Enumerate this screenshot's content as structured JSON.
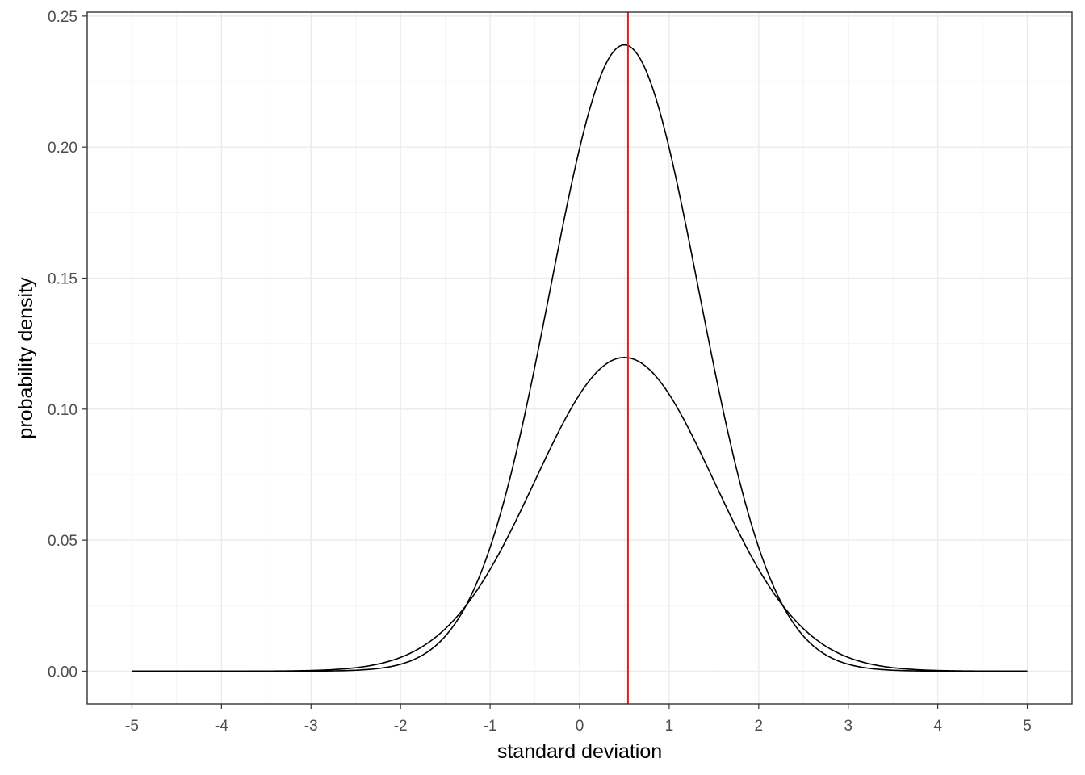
{
  "chart_data": {
    "type": "line",
    "title": "",
    "xlabel": "standard deviation",
    "ylabel": "probability density",
    "xlim": [
      -5.5,
      5.5
    ],
    "ylim": [
      -0.0125,
      0.2515
    ],
    "x_ticks": [
      -5,
      -4,
      -3,
      -2,
      -1,
      0,
      1,
      2,
      3,
      4,
      5
    ],
    "y_ticks": [
      0.0,
      0.05,
      0.1,
      0.15,
      0.2,
      0.25
    ],
    "x_tick_labels": [
      "-5",
      "-4",
      "-3",
      "-2",
      "-1",
      "0",
      "1",
      "2",
      "3",
      "4",
      "5"
    ],
    "y_tick_labels": [
      "0.00",
      "0.05",
      "0.10",
      "0.15",
      "0.20",
      "0.25"
    ],
    "grid": true,
    "series": [
      {
        "mean": 0.5,
        "sd": 0.833,
        "peak": 0.239,
        "x_range": [
          -5,
          5
        ],
        "color": "#000000"
      },
      {
        "mean": 0.5,
        "sd": 1.0,
        "peak": 0.1197,
        "x_range": [
          -5,
          5
        ],
        "color": "#000000"
      }
    ],
    "vline": {
      "x": 0.54,
      "color": "#e41a1c"
    }
  }
}
